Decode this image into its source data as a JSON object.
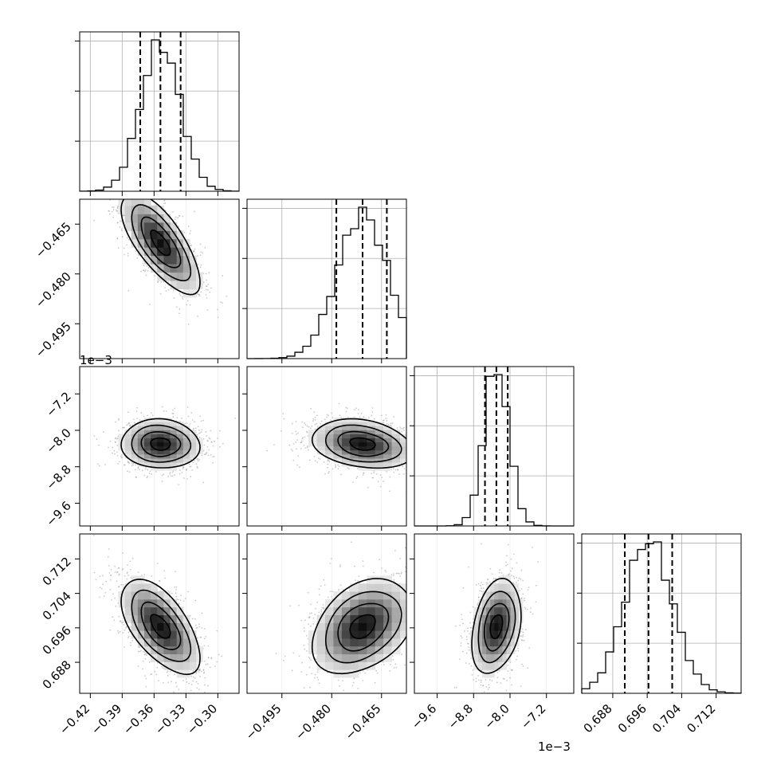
{
  "chart_data": {
    "type": "corner",
    "parameters": [
      {
        "range": [
          -0.43,
          -0.28
        ],
        "ticks": [
          -0.42,
          -0.39,
          -0.36,
          -0.33,
          -0.3
        ],
        "tick_labels": [
          "−0.42",
          "−0.39",
          "−0.36",
          "−0.33",
          "−0.30"
        ],
        "offset_label": "",
        "quantiles": [
          -0.373,
          -0.354,
          -0.335
        ],
        "center": -0.354,
        "sigma": 0.0185
      },
      {
        "range": [
          -0.5055,
          -0.4575
        ],
        "ticks": [
          -0.495,
          -0.48,
          -0.465
        ],
        "tick_labels": [
          "−0.495",
          "−0.480",
          "−0.465"
        ],
        "offset_label": "",
        "quantiles": [
          -0.4786,
          -0.4707,
          -0.4634
        ],
        "center": -0.4707,
        "sigma": 0.0076
      },
      {
        "range": [
          -0.0101,
          -0.0066
        ],
        "ticks": [
          -0.0096,
          -0.0088,
          -0.008,
          -0.0072
        ],
        "tick_labels": [
          "−9.6",
          "−8.8",
          "−8.0",
          "−7.2"
        ],
        "offset_label": "1e−3",
        "quantiles": [
          -0.00855,
          -0.0083,
          -0.00805
        ],
        "center": -0.0083,
        "sigma": 0.00027
      },
      {
        "range": [
          0.6808,
          0.7178
        ],
        "ticks": [
          0.688,
          0.696,
          0.704,
          0.712
        ],
        "tick_labels": [
          "0.688",
          "0.696",
          "0.704",
          "0.712"
        ],
        "offset_label": "",
        "quantiles": [
          0.6908,
          0.6963,
          0.7018
        ],
        "center": 0.6963,
        "sigma": 0.0055
      }
    ],
    "correlations": [
      [
        0,
        1,
        -0.72
      ],
      [
        0,
        2,
        -0.05
      ],
      [
        0,
        3,
        -0.6
      ],
      [
        1,
        2,
        -0.25
      ],
      [
        1,
        3,
        0.35
      ],
      [
        2,
        3,
        0.3
      ]
    ],
    "hist_ylim": [
      0,
      1.05
    ],
    "grid": true
  }
}
